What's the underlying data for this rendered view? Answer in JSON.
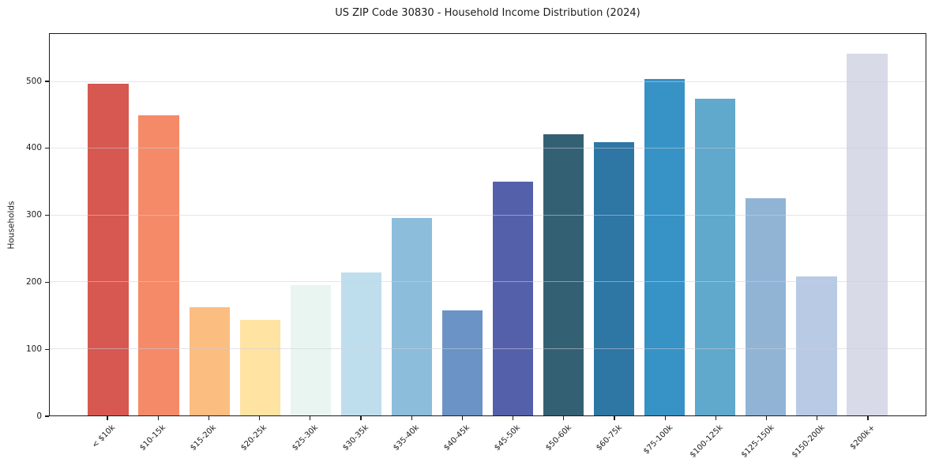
{
  "chart_data": {
    "type": "bar",
    "title": "US ZIP Code 30830 - Household Income Distribution (2024)",
    "xlabel": "",
    "ylabel": "Households",
    "categories": [
      "< $10k",
      "$10-15k",
      "$15-20k",
      "$20-25k",
      "$25-30k",
      "$30-35k",
      "$35-40k",
      "$40-45k",
      "$45-50k",
      "$50-60k",
      "$60-75k",
      "$75-100k",
      "$100-125k",
      "$125-150k",
      "$150-200k",
      "$200k+"
    ],
    "values": [
      497,
      450,
      162,
      143,
      196,
      214,
      296,
      158,
      351,
      422,
      410,
      505,
      475,
      326,
      208,
      542
    ],
    "bar_colors": [
      "#d65850",
      "#f58a68",
      "#fbbd80",
      "#fee3a3",
      "#e9f5f0",
      "#bfdeed",
      "#8cbddb",
      "#6b93c6",
      "#5560aa",
      "#346074",
      "#2e76a4",
      "#3792c5",
      "#60a8cc",
      "#91b4d5",
      "#b9cbe4",
      "#d8dae8"
    ],
    "yticks": [
      0,
      100,
      200,
      300,
      400,
      500
    ],
    "ylim": [
      0,
      572
    ],
    "grid": "horizontal",
    "legend": "none",
    "colors": {
      "background": "#ffffff",
      "spine": "#1c1c1c",
      "gridline": "#e9e9ee",
      "text": "#1c1c1c"
    }
  }
}
